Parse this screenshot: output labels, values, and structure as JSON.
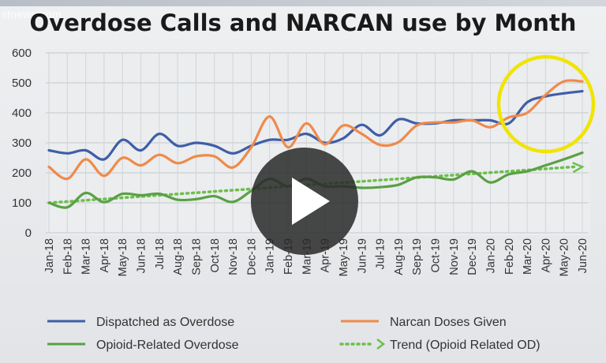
{
  "watermark": "stnews.com",
  "chart_data": {
    "type": "line",
    "title": "Overdose Calls and NARCAN use by Month",
    "xlabel": "",
    "ylabel": "",
    "ylim": [
      0,
      600
    ],
    "yticks": [
      0,
      100,
      200,
      300,
      400,
      500,
      600
    ],
    "grid": true,
    "legend_position": "bottom",
    "highlight": {
      "type": "circle",
      "color": "#f0e400",
      "label": "Mar-20 to Jun-20"
    },
    "overlay": {
      "type": "video-play-button"
    },
    "categories": [
      "Jan-18",
      "Feb-18",
      "Mar-18",
      "Apr-18",
      "May-18",
      "Jun-18",
      "Jul-18",
      "Aug-18",
      "Sep-18",
      "Oct-18",
      "Nov-18",
      "Dec-18",
      "Jan-19",
      "Feb-19",
      "Mar-19",
      "Apr-19",
      "May-19",
      "Jun-19",
      "Jul-19",
      "Aug-19",
      "Sep-19",
      "Oct-19",
      "Nov-19",
      "Dec-19",
      "Jan-20",
      "Feb-20",
      "Mar-20",
      "Apr-20",
      "May-20",
      "Jun-20"
    ],
    "series": [
      {
        "name": "Dispatched as Overdose",
        "color": "#3f5ea7",
        "style": "solid",
        "values": [
          275,
          265,
          275,
          245,
          310,
          275,
          330,
          290,
          300,
          290,
          265,
          290,
          310,
          310,
          330,
          300,
          315,
          360,
          325,
          378,
          365,
          365,
          375,
          375,
          375,
          365,
          435,
          455,
          465,
          472
        ]
      },
      {
        "name": "Narcan Doses Given",
        "color": "#ef8a4a",
        "style": "solid",
        "values": [
          220,
          180,
          245,
          190,
          250,
          225,
          260,
          232,
          255,
          255,
          218,
          285,
          388,
          285,
          365,
          295,
          358,
          330,
          293,
          302,
          358,
          368,
          368,
          375,
          352,
          385,
          400,
          460,
          505,
          505
        ]
      },
      {
        "name": "Opioid-Related Overdose",
        "color": "#5aa044",
        "style": "solid",
        "values": [
          100,
          85,
          133,
          102,
          130,
          125,
          130,
          110,
          112,
          122,
          103,
          140,
          180,
          155,
          180,
          155,
          155,
          150,
          152,
          160,
          185,
          185,
          178,
          205,
          168,
          195,
          205,
          225,
          245,
          267
        ]
      },
      {
        "name": "Trend (Opioid Related OD)",
        "color": "#6cbf4a",
        "style": "dotted-arrow",
        "values": [
          100,
          104,
          108,
          112,
          116,
          120,
          125,
          129,
          133,
          137,
          141,
          145,
          149,
          153,
          157,
          161,
          165,
          169,
          173,
          177,
          181,
          185,
          190,
          194,
          198,
          202,
          206,
          210,
          214,
          220
        ]
      }
    ]
  }
}
